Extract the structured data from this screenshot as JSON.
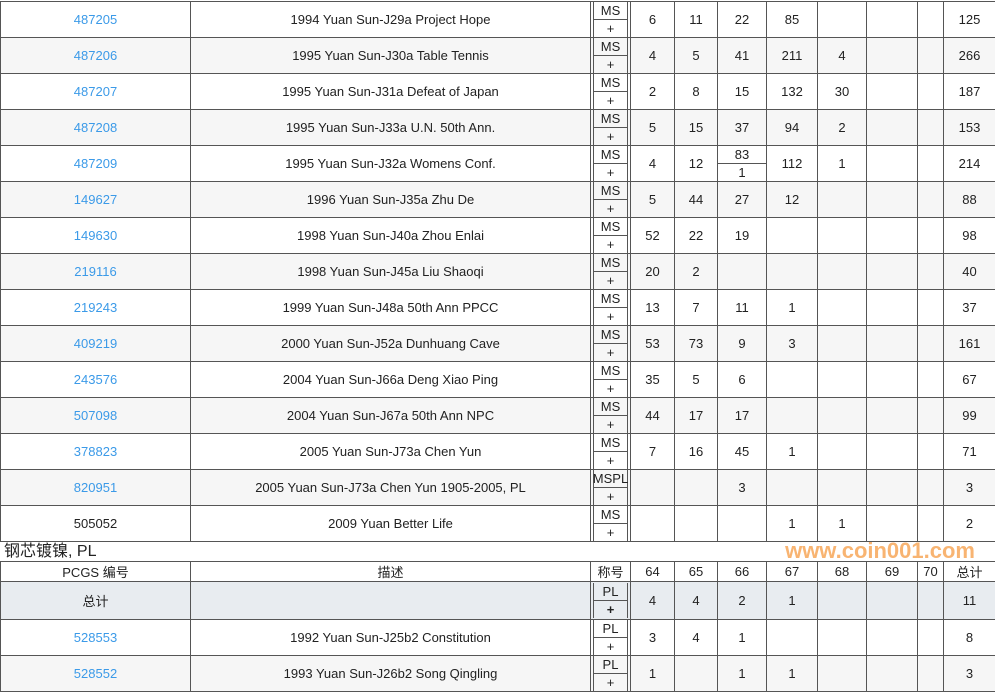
{
  "rows": [
    {
      "pcgs": "487205",
      "desc": "1994 Yuan Sun-J29a Project Hope",
      "grade": "MS",
      "plus": "+",
      "g": [
        "6",
        "11",
        "22",
        "85",
        "",
        "",
        ""
      ],
      "total": "125",
      "link": true
    },
    {
      "pcgs": "487206",
      "desc": "1995 Yuan Sun-J30a Table Tennis",
      "grade": "MS",
      "plus": "+",
      "g": [
        "4",
        "5",
        "41",
        "211",
        "4",
        "",
        ""
      ],
      "total": "266",
      "link": true
    },
    {
      "pcgs": "487207",
      "desc": "1995 Yuan Sun-J31a Defeat of Japan",
      "grade": "MS",
      "plus": "+",
      "g": [
        "2",
        "8",
        "15",
        "132",
        "30",
        "",
        ""
      ],
      "total": "187",
      "link": true
    },
    {
      "pcgs": "487208",
      "desc": "1995 Yuan Sun-J33a U.N. 50th Ann.",
      "grade": "MS",
      "plus": "+",
      "g": [
        "5",
        "15",
        "37",
        "94",
        "2",
        "",
        ""
      ],
      "total": "153",
      "link": true
    },
    {
      "pcgs": "487209",
      "desc": "1995 Yuan Sun-J32a Womens Conf.",
      "grade": "MS",
      "plus": "+",
      "g": [
        "4",
        "12",
        "83",
        "112",
        "1",
        "",
        ""
      ],
      "g66plus": "1",
      "total": "214",
      "link": true
    },
    {
      "pcgs": "149627",
      "desc": "1996 Yuan Sun-J35a Zhu De",
      "grade": "MS",
      "plus": "+",
      "g": [
        "5",
        "44",
        "27",
        "12",
        "",
        "",
        ""
      ],
      "total": "88",
      "link": true
    },
    {
      "pcgs": "149630",
      "desc": "1998 Yuan Sun-J40a Zhou Enlai",
      "grade": "MS",
      "plus": "+",
      "g": [
        "52",
        "22",
        "19",
        "",
        "",
        "",
        ""
      ],
      "total": "98",
      "link": true
    },
    {
      "pcgs": "219116",
      "desc": "1998 Yuan Sun-J45a Liu Shaoqi",
      "grade": "MS",
      "plus": "+",
      "g": [
        "20",
        "2",
        "",
        "",
        "",
        "",
        ""
      ],
      "total": "40",
      "link": true
    },
    {
      "pcgs": "219243",
      "desc": "1999 Yuan Sun-J48a 50th Ann PPCC",
      "grade": "MS",
      "plus": "+",
      "g": [
        "13",
        "7",
        "11",
        "1",
        "",
        "",
        ""
      ],
      "total": "37",
      "link": true
    },
    {
      "pcgs": "409219",
      "desc": "2000 Yuan Sun-J52a Dunhuang Cave",
      "grade": "MS",
      "plus": "+",
      "g": [
        "53",
        "73",
        "9",
        "3",
        "",
        "",
        ""
      ],
      "total": "161",
      "link": true
    },
    {
      "pcgs": "243576",
      "desc": "2004 Yuan Sun-J66a Deng Xiao Ping",
      "grade": "MS",
      "plus": "+",
      "g": [
        "35",
        "5",
        "6",
        "",
        "",
        "",
        ""
      ],
      "total": "67",
      "link": true
    },
    {
      "pcgs": "507098",
      "desc": "2004 Yuan Sun-J67a 50th Ann NPC",
      "grade": "MS",
      "plus": "+",
      "g": [
        "44",
        "17",
        "17",
        "",
        "",
        "",
        ""
      ],
      "total": "99",
      "link": true
    },
    {
      "pcgs": "378823",
      "desc": "2005 Yuan Sun-J73a Chen Yun",
      "grade": "MS",
      "plus": "+",
      "g": [
        "7",
        "16",
        "45",
        "1",
        "",
        "",
        ""
      ],
      "total": "71",
      "link": true
    },
    {
      "pcgs": "820951",
      "desc": "2005 Yuan Sun-J73a Chen Yun 1905-2005, PL",
      "grade": "MSPL",
      "plus": "+",
      "g": [
        "",
        "",
        "3",
        "",
        "",
        "",
        ""
      ],
      "total": "3",
      "link": true
    },
    {
      "pcgs": "505052",
      "desc": "2009 Yuan Better Life",
      "grade": "MS",
      "plus": "+",
      "g": [
        "",
        "",
        "",
        "1",
        "1",
        "",
        ""
      ],
      "total": "2",
      "link": false
    }
  ],
  "section_title": "钢芯镀镍, PL",
  "header": [
    "PCGS 编号",
    "描述",
    "称号",
    "64",
    "65",
    "66",
    "67",
    "68",
    "69",
    "70",
    "总计"
  ],
  "total_row": {
    "label": "总计",
    "desc": "",
    "grade": "PL",
    "plus": "+",
    "g": [
      "4",
      "4",
      "2",
      "1",
      "",
      "",
      ""
    ],
    "total": "11"
  },
  "rows2": [
    {
      "pcgs": "528553",
      "desc": "1992 Yuan Sun-J25b2 Constitution",
      "grade": "PL",
      "plus": "+",
      "g": [
        "3",
        "4",
        "1",
        "",
        "",
        "",
        ""
      ],
      "total": "8",
      "link": true
    },
    {
      "pcgs": "528552",
      "desc": "1993 Yuan Sun-J26b2 Song Qingling",
      "grade": "PL",
      "plus": "+",
      "g": [
        "1",
        "",
        "1",
        "1",
        "",
        "",
        ""
      ],
      "total": "3",
      "link": true
    }
  ],
  "watermark": "www.coin001.com"
}
